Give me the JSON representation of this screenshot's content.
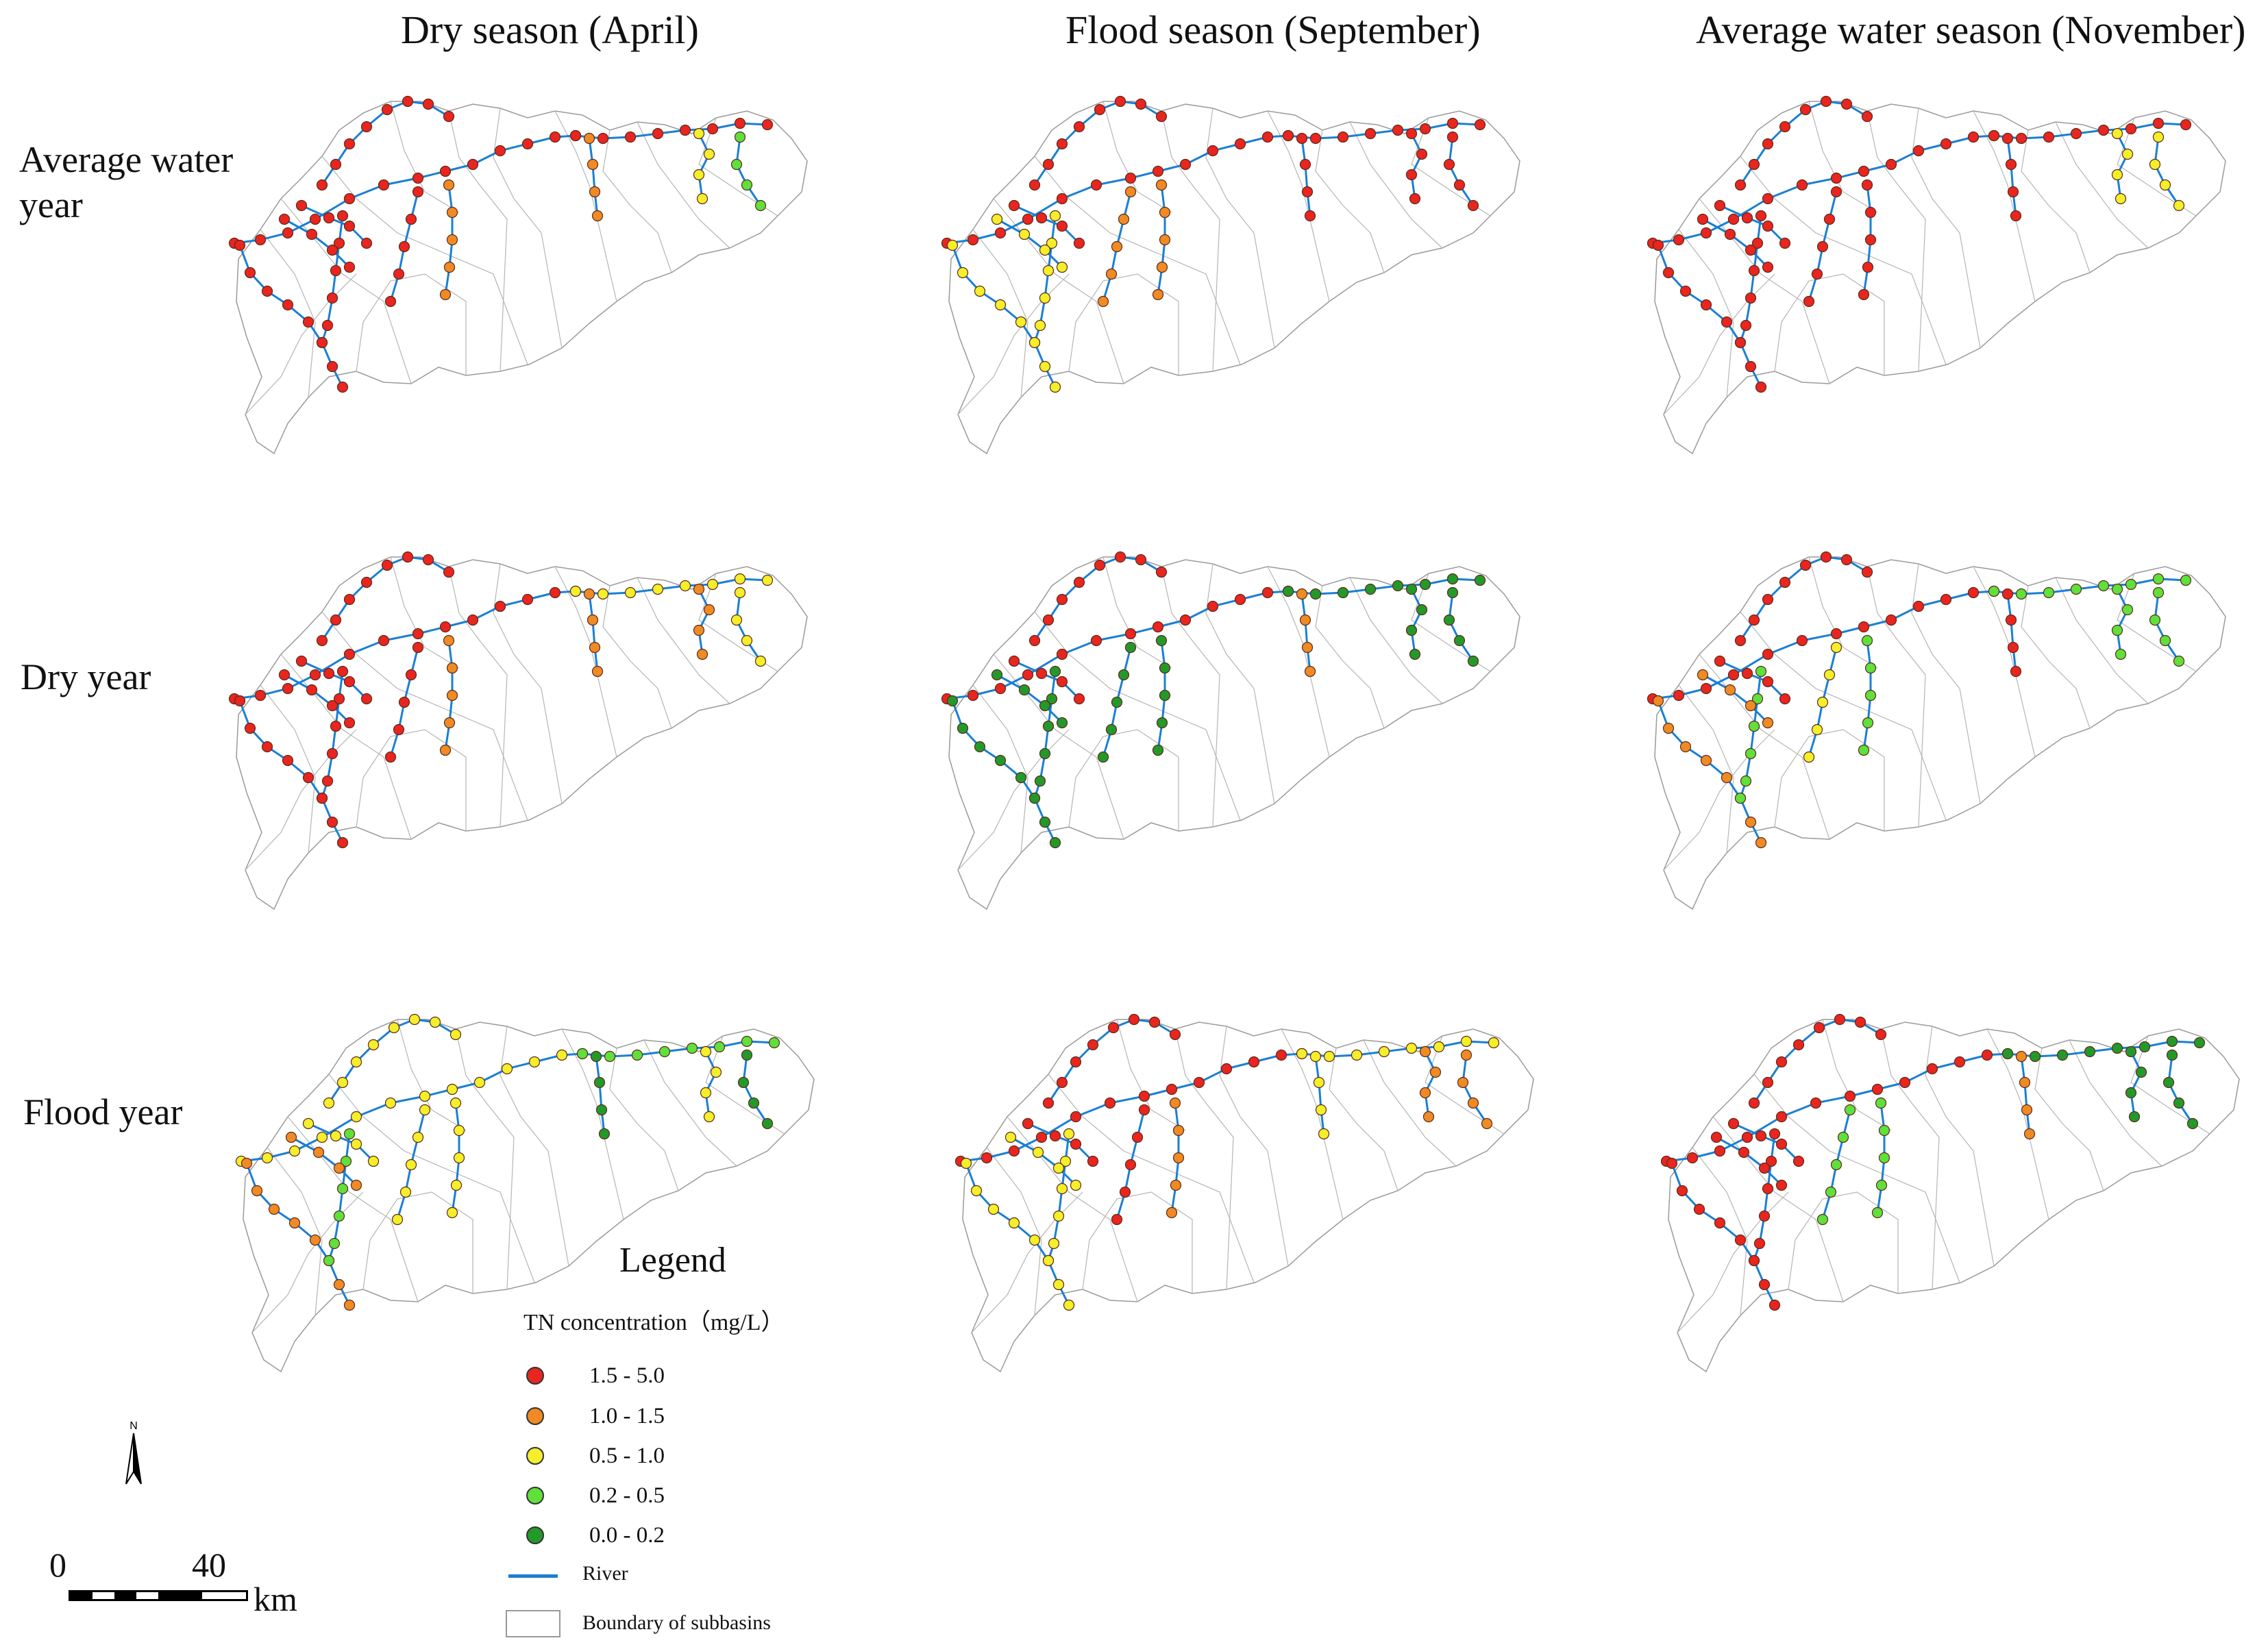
{
  "columns": [
    {
      "label": "Dry season (April)"
    },
    {
      "label": "Flood season (September)"
    },
    {
      "label": "Average water season (November)"
    }
  ],
  "rows": [
    {
      "label_line1": "Average water",
      "label_line2": "year"
    },
    {
      "label_line1": "Dry year",
      "label_line2": ""
    },
    {
      "label_line1": "Flood year",
      "label_line2": ""
    }
  ],
  "legend": {
    "title": "Legend",
    "subtitle": "TN concentration（mg/L）",
    "classes": [
      {
        "label": "1.5 - 5.0",
        "color": "#e8251f"
      },
      {
        "label": "1.0 - 1.5",
        "color": "#f08a24"
      },
      {
        "label": "0.5 - 1.0",
        "color": "#f5ee2a"
      },
      {
        "label": "0.2 - 0.5",
        "color": "#5fe03a"
      },
      {
        "label": "0.0 - 0.2",
        "color": "#23992a"
      }
    ],
    "river_label": "River",
    "boundary_label": "Boundary of subbasins"
  },
  "north_arrow": {
    "label": "N"
  },
  "scale_bar": {
    "start": "0",
    "end": "40",
    "unit": "km"
  },
  "river_color": "#1a7fd4",
  "panels": [
    {
      "row": 0,
      "col": 0,
      "classes": {
        "main": 0,
        "west": 0,
        "mid1": 0,
        "mid2": 0,
        "mid3": 1,
        "east_main": 0,
        "east_trib": 1,
        "ne": 2,
        "se": 3
      }
    },
    {
      "row": 0,
      "col": 1,
      "classes": {
        "main": 0,
        "west": 2,
        "mid1": 2,
        "mid2": 1,
        "mid3": 1,
        "east_main": 0,
        "east_trib": 0,
        "ne": 0,
        "se": 0
      }
    },
    {
      "row": 0,
      "col": 2,
      "classes": {
        "main": 0,
        "west": 0,
        "mid1": 0,
        "mid2": 0,
        "mid3": 0,
        "east_main": 0,
        "east_trib": 0,
        "ne": 2,
        "se": 2
      }
    },
    {
      "row": 1,
      "col": 0,
      "classes": {
        "main": 0,
        "west": 0,
        "mid1": 0,
        "mid2": 0,
        "mid3": 1,
        "east_main": 2,
        "east_trib": 1,
        "ne": 1,
        "se": 2
      }
    },
    {
      "row": 1,
      "col": 1,
      "classes": {
        "main": 0,
        "west": 4,
        "mid1": 4,
        "mid2": 4,
        "mid3": 4,
        "east_main": 4,
        "east_trib": 1,
        "ne": 4,
        "se": 4
      }
    },
    {
      "row": 1,
      "col": 2,
      "classes": {
        "main": 0,
        "west": 1,
        "mid1": 3,
        "mid2": 2,
        "mid3": 3,
        "east_main": 3,
        "east_trib": 0,
        "ne": 3,
        "se": 3
      }
    },
    {
      "row": 2,
      "col": 0,
      "classes": {
        "main": 2,
        "west": 1,
        "mid1": 3,
        "mid2": 2,
        "mid3": 2,
        "east_main": 3,
        "east_trib": 4,
        "ne": 2,
        "se": 4
      }
    },
    {
      "row": 2,
      "col": 1,
      "classes": {
        "main": 0,
        "west": 2,
        "mid1": 2,
        "mid2": 0,
        "mid3": 1,
        "east_main": 2,
        "east_trib": 2,
        "ne": 1,
        "se": 1
      }
    },
    {
      "row": 2,
      "col": 2,
      "classes": {
        "main": 0,
        "west": 0,
        "mid1": 0,
        "mid2": 3,
        "mid3": 3,
        "east_main": 4,
        "east_trib": 1,
        "ne": 4,
        "se": 4
      }
    }
  ]
}
